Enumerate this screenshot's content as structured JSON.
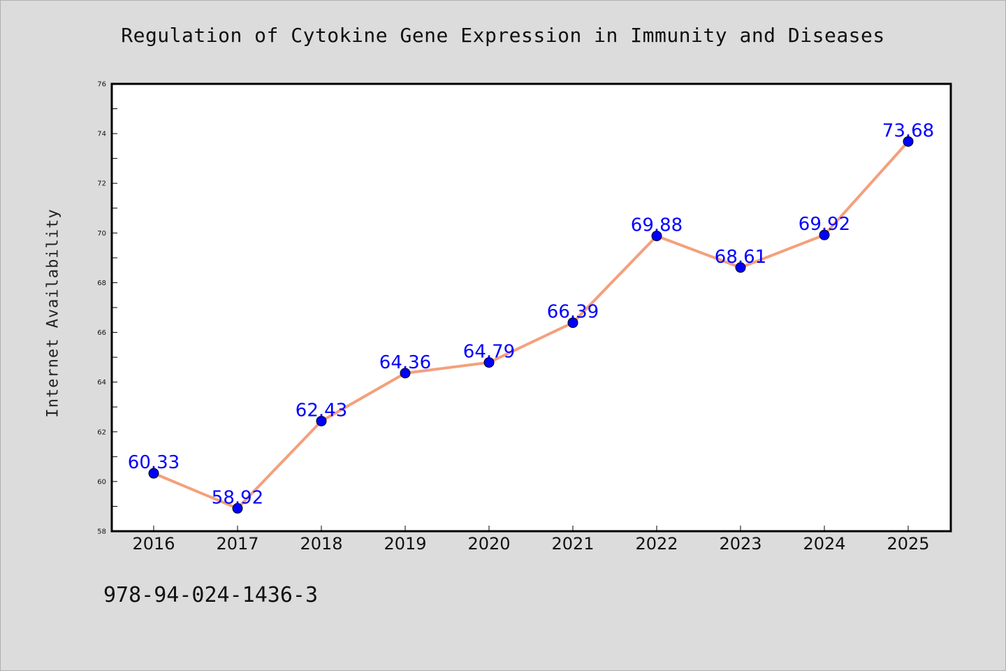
{
  "title": "Regulation of Cytokine Gene Expression in Immunity and Diseases",
  "footer_text": "978-94-024-1436-3",
  "chart_data": {
    "type": "line",
    "title": "Regulation of Cytokine Gene Expression in Immunity and Diseases",
    "xlabel": "",
    "ylabel": "Internet Availability",
    "categories": [
      "2016",
      "2017",
      "2018",
      "2019",
      "2020",
      "2021",
      "2022",
      "2023",
      "2024",
      "2025"
    ],
    "series": [
      {
        "values": [
          60.33,
          58.92,
          62.43,
          64.36,
          64.79,
          66.39,
          69.88,
          68.61,
          69.92,
          73.68
        ],
        "line_color": "#f4a07c",
        "marker_color": "#0000ff"
      }
    ],
    "ylim": [
      58,
      76
    ],
    "y_ticks": [
      58,
      60,
      62,
      64,
      66,
      68,
      70,
      72,
      74,
      76
    ],
    "data_labels": [
      "60.33",
      "58.92",
      "62.43",
      "64.36",
      "64.79",
      "66.39",
      "69.88",
      "68.61",
      "69.92",
      "73.68"
    ],
    "grid": false,
    "legend": "none",
    "colors": {
      "background": "#dcdcdc",
      "plot_background": "#ffffff",
      "label": "#0000ff"
    }
  }
}
